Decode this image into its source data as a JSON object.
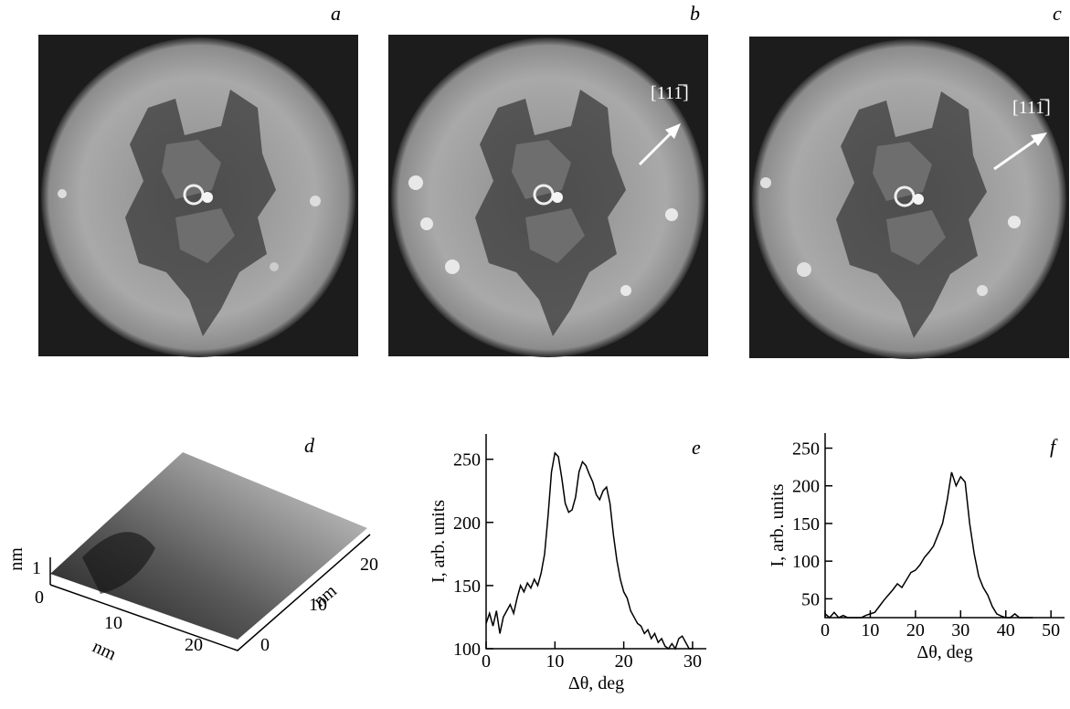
{
  "chart_data": [
    {
      "type": "line",
      "title": "e",
      "xlabel": "Δθ, deg",
      "ylabel": "I, arb. units",
      "x": [
        0,
        0.5,
        1,
        1.5,
        2,
        2.5,
        3,
        3.5,
        4,
        4.5,
        5,
        5.5,
        6,
        6.5,
        7,
        7.5,
        8,
        8.5,
        9,
        9.5,
        10,
        10.5,
        11,
        11.5,
        12,
        12.5,
        13,
        13.5,
        14,
        14.5,
        15,
        15.5,
        16,
        16.5,
        17,
        17.5,
        18,
        18.5,
        19,
        19.5,
        20,
        20.5,
        21,
        21.5,
        22,
        22.5,
        23,
        23.5,
        24,
        24.5,
        25,
        25.5,
        26,
        26.5,
        27,
        27.5,
        28,
        28.5,
        29,
        29.5,
        30
      ],
      "values": [
        120,
        128,
        118,
        130,
        112,
        125,
        130,
        135,
        128,
        140,
        150,
        145,
        152,
        148,
        155,
        150,
        160,
        175,
        205,
        240,
        255,
        252,
        235,
        215,
        208,
        210,
        220,
        240,
        248,
        245,
        238,
        232,
        222,
        218,
        225,
        228,
        215,
        190,
        170,
        155,
        145,
        140,
        130,
        125,
        120,
        118,
        112,
        115,
        108,
        112,
        105,
        108,
        102,
        100,
        104,
        100,
        108,
        110,
        105,
        100,
        100
      ],
      "color": "#000000",
      "xlim": [
        0,
        32
      ],
      "ylim": [
        100,
        270
      ],
      "xticks": [
        0,
        10,
        20,
        30
      ],
      "yticks": [
        100,
        150,
        200,
        250
      ]
    },
    {
      "type": "line",
      "title": "f",
      "xlabel": "Δθ, deg",
      "ylabel": "I, arb. units",
      "x": [
        0,
        1,
        2,
        3,
        4,
        5,
        6,
        7,
        8,
        9,
        10,
        11,
        12,
        13,
        14,
        15,
        16,
        17,
        18,
        19,
        20,
        21,
        22,
        23,
        24,
        25,
        26,
        27,
        28,
        29,
        30,
        31,
        32,
        33,
        34,
        35,
        36,
        37,
        38,
        39,
        40,
        41,
        42,
        43,
        44,
        45,
        46
      ],
      "values": [
        30,
        25,
        32,
        25,
        28,
        25,
        25,
        25,
        25,
        28,
        30,
        32,
        40,
        48,
        55,
        62,
        70,
        65,
        75,
        85,
        88,
        95,
        105,
        112,
        120,
        135,
        150,
        180,
        218,
        200,
        212,
        205,
        150,
        110,
        80,
        65,
        55,
        40,
        30,
        27,
        25,
        25,
        30,
        25,
        25,
        25,
        25
      ],
      "color": "#000000",
      "xlim": [
        0,
        53
      ],
      "ylim": [
        25,
        270
      ],
      "xticks": [
        0,
        10,
        20,
        30,
        40,
        50
      ],
      "yticks": [
        50,
        100,
        150,
        200,
        250
      ]
    }
  ],
  "panels": {
    "a": {
      "label": "a"
    },
    "b": {
      "label": "b",
      "annotation": "[111̅]"
    },
    "c": {
      "label": "c",
      "annotation": "[111̅]"
    },
    "d": {
      "label": "d",
      "z_unit": "nm",
      "z_tick": "1",
      "x_unit": "nm",
      "x_ticks": [
        "0",
        "10",
        "20"
      ],
      "y_unit": "nm",
      "y_ticks": [
        "0",
        "10",
        "20"
      ]
    }
  }
}
